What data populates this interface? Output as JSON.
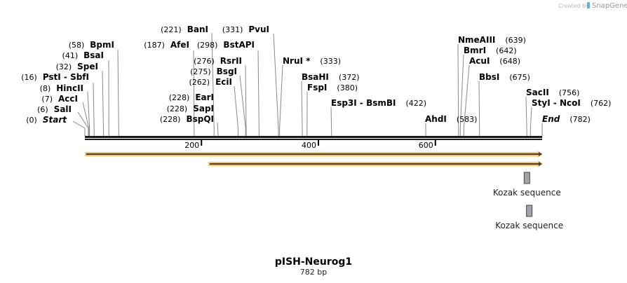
{
  "credit": {
    "prefix": "Created by",
    "brand": "SnapGene"
  },
  "map": {
    "name": "pISH-Neurog1",
    "length_label": "782 bp",
    "length": 782
  },
  "ticks": [
    200,
    400,
    600
  ],
  "enzymes": [
    {
      "name": "Start",
      "pos": 0,
      "italic": true
    },
    {
      "name": "SalI",
      "pos": 6
    },
    {
      "name": "AccI",
      "pos": 7
    },
    {
      "name": "HincII",
      "pos": 8
    },
    {
      "name": "PstI  -  SbfI",
      "pos": 16
    },
    {
      "name": "SpeI",
      "pos": 32
    },
    {
      "name": "BsaI",
      "pos": 41
    },
    {
      "name": "BpmI",
      "pos": 58
    },
    {
      "name": "AfeI",
      "pos": 187
    },
    {
      "name": "BanI",
      "pos": 221
    },
    {
      "name": "EarI",
      "pos": 228
    },
    {
      "name": "SapI",
      "pos": 228
    },
    {
      "name": "BspQI",
      "pos": 228
    },
    {
      "name": "EciI",
      "pos": 262
    },
    {
      "name": "BsgI",
      "pos": 275
    },
    {
      "name": "RsrII",
      "pos": 276
    },
    {
      "name": "BstAPI",
      "pos": 298
    },
    {
      "name": "PvuI",
      "pos": 331
    },
    {
      "name": "NruI *",
      "pos": 333
    },
    {
      "name": "BsaHI",
      "pos": 372
    },
    {
      "name": "FspI",
      "pos": 380
    },
    {
      "name": "Esp3I  -  BsmBI",
      "pos": 422
    },
    {
      "name": "AhdI",
      "pos": 583
    },
    {
      "name": "NmeAIII",
      "pos": 639
    },
    {
      "name": "BmrI",
      "pos": 642
    },
    {
      "name": "AcuI",
      "pos": 648
    },
    {
      "name": "BbsI",
      "pos": 675
    },
    {
      "name": "SacII",
      "pos": 756
    },
    {
      "name": "StyI  -  NcoI",
      "pos": 762
    },
    {
      "name": "End",
      "pos": 782,
      "italic": true
    }
  ],
  "features": [
    {
      "name": "",
      "start": 1,
      "end": 782,
      "color": "#f8c36a",
      "type": "arrow"
    },
    {
      "name": "",
      "start": 212,
      "end": 782,
      "color": "#f8c36a",
      "type": "arrow"
    },
    {
      "name": "Kozak sequence",
      "start": 752,
      "end": 761,
      "color": "#a0a4ab"
    },
    {
      "name": "Kozak sequence",
      "start": 756,
      "end": 765,
      "color": "#a0a4ab"
    }
  ],
  "colors": {
    "backbone": "#1a1a1a",
    "arrow_line": "#4a3f2c"
  }
}
